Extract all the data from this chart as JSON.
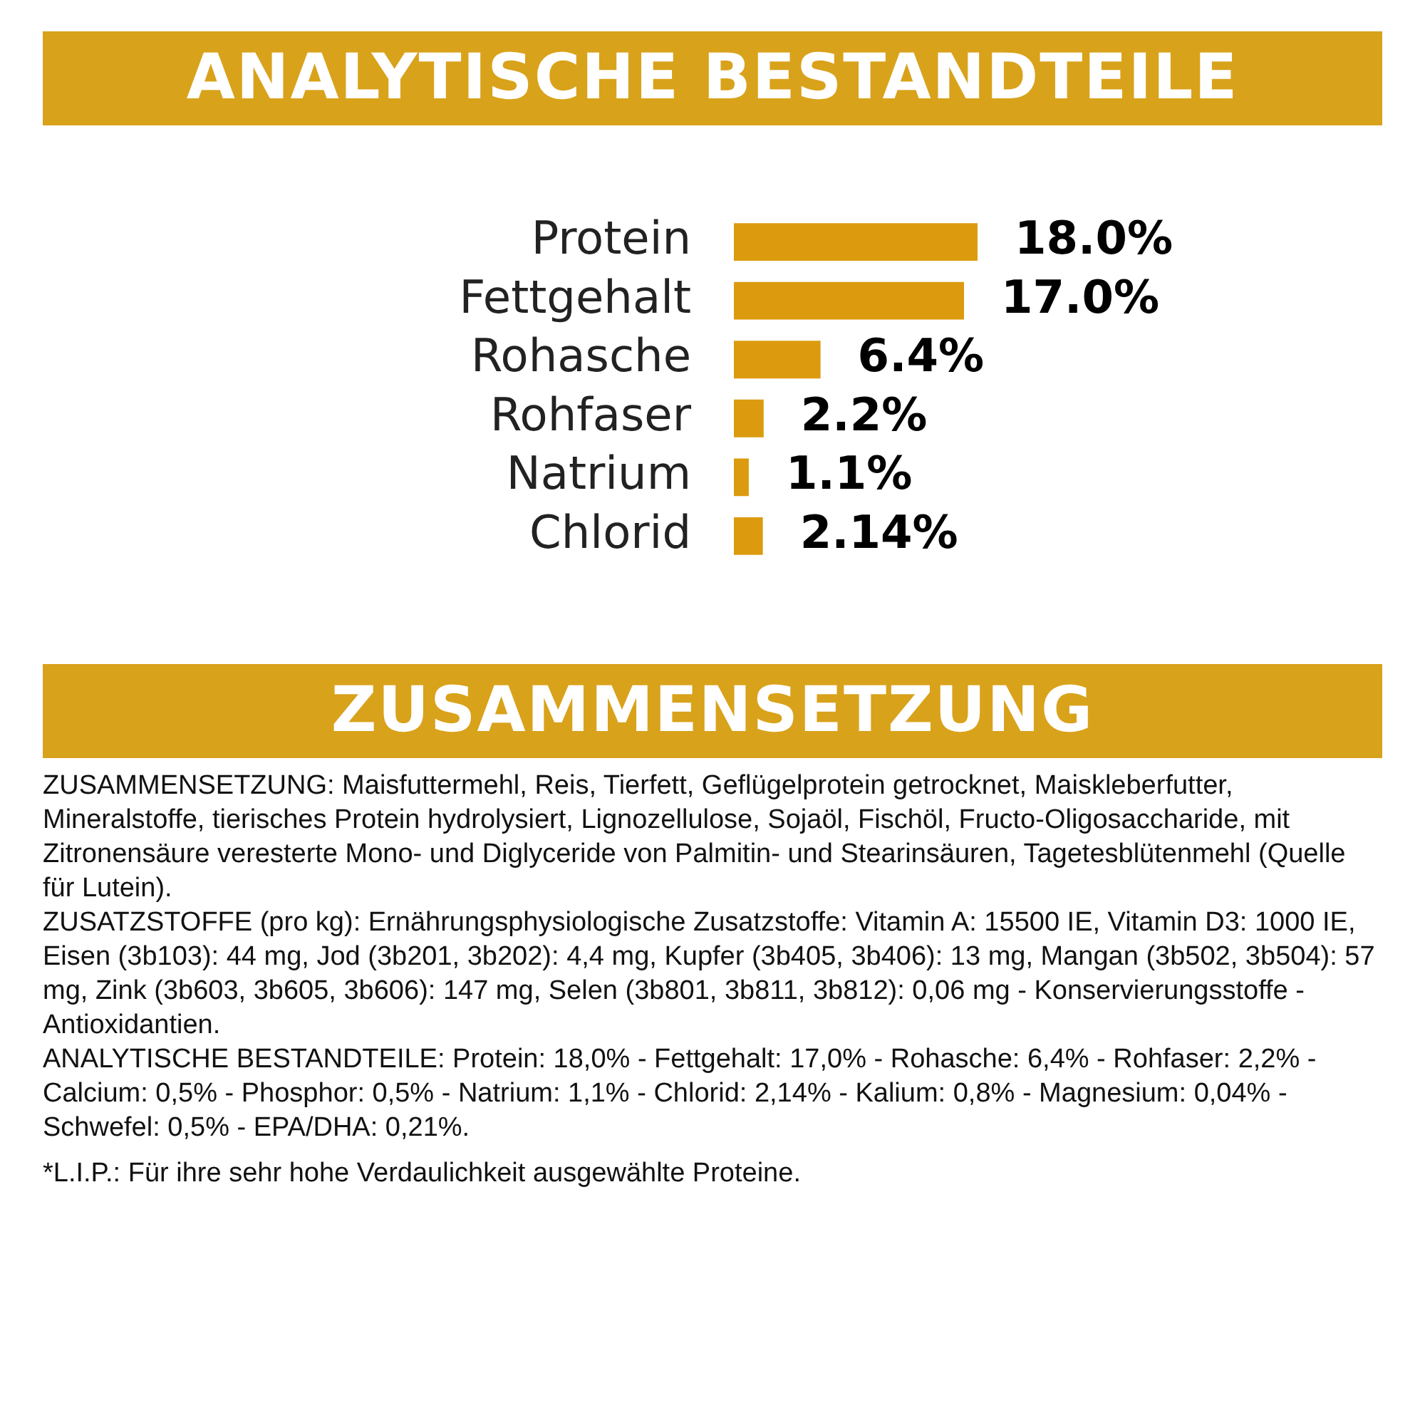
{
  "chart_data": {
    "type": "bar",
    "orientation": "horizontal",
    "title": "ANALYTISCHE BESTANDTEILE",
    "categories": [
      "Protein",
      "Fettgehalt",
      "Rohasche",
      "Rohfaser",
      "Natrium",
      "Chlorid"
    ],
    "values": [
      18.0,
      17.0,
      6.4,
      2.2,
      1.1,
      2.14
    ],
    "value_labels": [
      "18.0%",
      "17.0%",
      "6.4%",
      "2.2%",
      "1.1%",
      "2.14%"
    ],
    "color": "#dc9b0e",
    "tick_labels": "y",
    "annotations": [
      "ZUSAMMENSETZUNG",
      "ZUSAMMENSETZUNG: Maisfuttermehl, Reis, Tierfett, Geflügelprotein getrocknet, Maiskleberfutter, Mineralstoffe, tierisches Protein hydrolysiert, Lignozellulose, Sojaöl, Fischöl, Fructo-Oligosaccharide, mit Zitronensäure veresterte Mono- und Diglyceride von Palmitin- und Stearinsäuren, Tagetesblütenmehl (Quelle für Lutein).",
      "ZUSATZSTOFFE (pro kg): Ernährungsphysiologische Zusatzstoffe: Vitamin A: 15500 IE, Vitamin D3: 1000 IE, Eisen (3b103): 44 mg, Jod (3b201, 3b202): 4,4 mg, Kupfer (3b405, 3b406): 13 mg, Mangan (3b502, 3b504): 57 mg, Zink (3b603, 3b605, 3b606): 147 mg, Selen (3b801, 3b811, 3b812): 0,06 mg - Konservierungsstoffe - Antioxidantien.",
      "ANALYTISCHE BESTANDTEILE: Protein: 18,0% - Fettgehalt: 17,0% - Rohasche: 6,4% - Rohfaser: 2,2% - Calcium: 0,5% - Phosphor: 0,5% - Natrium: 1,1% - Chlorid: 2,14% - Kalium: 0,8% - Magnesium: 0,04% - Schwefel: 0,5% - EPA/DHA: 0,21%.",
      "*L.I.P.: Für ihre sehr hohe Verdaulichkeit ausgewählte Proteine."
    ]
  }
}
